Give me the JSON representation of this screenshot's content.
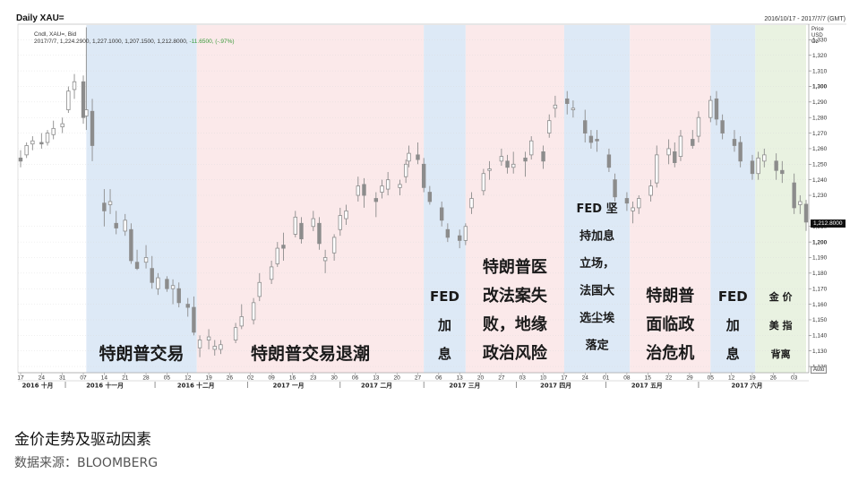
{
  "chart_header": {
    "title": "Daily XAU=",
    "date_range": "2016/10/17 - 2017/7/7 (GMT)",
    "ohlc_line1": "Cndl, XAU=, Bid",
    "ohlc_line2": "2017/7/7, 1,224.2900, 1,227.1000, 1,207.1500, 1,212.8000,",
    "ohlc_change": "-11.6500, (-.97%)"
  },
  "caption": "金价走势及驱动因素",
  "source": "数据来源：BLOOMBERG",
  "colors": {
    "blue_band": "#dde9f6",
    "pink_band": "#fbe9ea",
    "green_band": "#e9f2e1",
    "candle": "#8c8c8c",
    "label_text": "#1a1a1a"
  },
  "chart_data": {
    "type": "candlestick",
    "y_axis": {
      "header": [
        "Price",
        "USD",
        "Oz"
      ],
      "range": [
        1116,
        1340
      ],
      "ticks": [
        {
          "v": 1120,
          "label": "1,120",
          "bold": false
        },
        {
          "v": 1130,
          "label": "1,130",
          "bold": false
        },
        {
          "v": 1140,
          "label": "1,140",
          "bold": false
        },
        {
          "v": 1150,
          "label": "1,150",
          "bold": false
        },
        {
          "v": 1160,
          "label": "1,160",
          "bold": false
        },
        {
          "v": 1170,
          "label": "1,170",
          "bold": false
        },
        {
          "v": 1180,
          "label": "1,180",
          "bold": false
        },
        {
          "v": 1190,
          "label": "1,190",
          "bold": false
        },
        {
          "v": 1200,
          "label": "1,200",
          "bold": true
        },
        {
          "v": 1210,
          "label": "1,210",
          "bold": false
        },
        {
          "v": 1230,
          "label": "1,230",
          "bold": false
        },
        {
          "v": 1240,
          "label": "1,240",
          "bold": false
        },
        {
          "v": 1250,
          "label": "1,250",
          "bold": false
        },
        {
          "v": 1260,
          "label": "1,260",
          "bold": false
        },
        {
          "v": 1270,
          "label": "1,270",
          "bold": false
        },
        {
          "v": 1280,
          "label": "1,280",
          "bold": false
        },
        {
          "v": 1290,
          "label": "1,290",
          "bold": false
        },
        {
          "v": 1300,
          "label": "1,300",
          "bold": true
        },
        {
          "v": 1310,
          "label": "1,310",
          "bold": false
        },
        {
          "v": 1320,
          "label": "1,320",
          "bold": false
        },
        {
          "v": 1330,
          "label": "1,330",
          "bold": false
        }
      ],
      "last_price": "1,212.8000",
      "auto_label": "Auto"
    },
    "x_axis": {
      "day_ticks": [
        "17",
        "24",
        "31",
        "07",
        "14",
        "21",
        "28",
        "05",
        "12",
        "19",
        "26",
        "02",
        "09",
        "16",
        "23",
        "30",
        "06",
        "13",
        "20",
        "27",
        "06",
        "13",
        "20",
        "27",
        "03",
        "10",
        "17",
        "24",
        "01",
        "08",
        "15",
        "22",
        "29",
        "05",
        "12",
        "19",
        "26",
        "03"
      ],
      "month_labels": [
        "2016 十月",
        "2016 十一月",
        "2016 十二月",
        "2017 一月",
        "2017 二月",
        "2017 三月",
        "2017 四月",
        "2017 五月",
        "2017 六月"
      ]
    },
    "regimes": [
      {
        "id": "trump-trade",
        "color": "blue",
        "from": "2016-11-08",
        "to": "2016-12-15",
        "label_lines": [
          "特朗普交易"
        ]
      },
      {
        "id": "trump-trade-fade",
        "color": "pink",
        "from": "2016-12-15",
        "to": "2017-03-01",
        "label_lines": [
          "特朗普交易退潮"
        ]
      },
      {
        "id": "fed-hike-mar",
        "color": "blue",
        "from": "2017-03-01",
        "to": "2017-03-15",
        "label_lines": [
          "FED",
          "加",
          "息"
        ]
      },
      {
        "id": "healthcare-geopolitics",
        "color": "pink",
        "from": "2017-03-15",
        "to": "2017-04-17",
        "label_lines": [
          "特朗普医",
          "改法案失",
          "败，地缘",
          "政治风险"
        ]
      },
      {
        "id": "fed-firm-france",
        "color": "blue",
        "from": "2017-04-17",
        "to": "2017-05-09",
        "label_lines": [
          "FED 坚",
          "持加息",
          "立场，",
          "法国大",
          "选尘埃",
          "落定"
        ]
      },
      {
        "id": "political-crisis",
        "color": "pink",
        "from": "2017-05-09",
        "to": "2017-06-05",
        "label_lines": [
          "特朗普",
          "面临政",
          "治危机"
        ]
      },
      {
        "id": "fed-hike-jun",
        "color": "blue",
        "from": "2017-06-05",
        "to": "2017-06-20",
        "label_lines": [
          "FED",
          "加",
          "息"
        ]
      },
      {
        "id": "gold-dollar-divergence",
        "color": "green",
        "from": "2017-06-20",
        "to": "2017-07-07",
        "label_lines": [
          "金 价",
          "美 指",
          "背离"
        ]
      }
    ],
    "candles": [
      {
        "date": "2016-10-17",
        "o": 1254,
        "h": 1259,
        "l": 1248,
        "c": 1252
      },
      {
        "date": "2016-10-19",
        "o": 1256,
        "h": 1264,
        "l": 1254,
        "c": 1262
      },
      {
        "date": "2016-10-21",
        "o": 1263,
        "h": 1268,
        "l": 1259,
        "c": 1265
      },
      {
        "date": "2016-10-24",
        "o": 1264,
        "h": 1270,
        "l": 1260,
        "c": 1263
      },
      {
        "date": "2016-10-26",
        "o": 1264,
        "h": 1272,
        "l": 1262,
        "c": 1270
      },
      {
        "date": "2016-10-28",
        "o": 1269,
        "h": 1278,
        "l": 1266,
        "c": 1273
      },
      {
        "date": "2016-10-31",
        "o": 1274,
        "h": 1280,
        "l": 1270,
        "c": 1276
      },
      {
        "date": "2016-11-02",
        "o": 1285,
        "h": 1300,
        "l": 1283,
        "c": 1297
      },
      {
        "date": "2016-11-04",
        "o": 1298,
        "h": 1308,
        "l": 1292,
        "c": 1303
      },
      {
        "date": "2016-11-07",
        "o": 1303,
        "h": 1307,
        "l": 1276,
        "c": 1280
      },
      {
        "date": "2016-11-08",
        "o": 1281,
        "h": 1338,
        "l": 1272,
        "c": 1285
      },
      {
        "date": "2016-11-10",
        "o": 1284,
        "h": 1292,
        "l": 1252,
        "c": 1262
      },
      {
        "date": "2016-11-14",
        "o": 1225,
        "h": 1234,
        "l": 1210,
        "c": 1220
      },
      {
        "date": "2016-11-16",
        "o": 1224,
        "h": 1234,
        "l": 1218,
        "c": 1226
      },
      {
        "date": "2016-11-18",
        "o": 1212,
        "h": 1220,
        "l": 1205,
        "c": 1209
      },
      {
        "date": "2016-11-21",
        "o": 1207,
        "h": 1218,
        "l": 1204,
        "c": 1214
      },
      {
        "date": "2016-11-23",
        "o": 1208,
        "h": 1212,
        "l": 1186,
        "c": 1188
      },
      {
        "date": "2016-11-25",
        "o": 1187,
        "h": 1195,
        "l": 1182,
        "c": 1183
      },
      {
        "date": "2016-11-28",
        "o": 1187,
        "h": 1198,
        "l": 1183,
        "c": 1190
      },
      {
        "date": "2016-11-30",
        "o": 1183,
        "h": 1191,
        "l": 1170,
        "c": 1174
      },
      {
        "date": "2016-12-02",
        "o": 1170,
        "h": 1180,
        "l": 1166,
        "c": 1177
      },
      {
        "date": "2016-12-05",
        "o": 1176,
        "h": 1178,
        "l": 1168,
        "c": 1170
      },
      {
        "date": "2016-12-07",
        "o": 1170,
        "h": 1176,
        "l": 1160,
        "c": 1172
      },
      {
        "date": "2016-12-09",
        "o": 1170,
        "h": 1174,
        "l": 1158,
        "c": 1161
      },
      {
        "date": "2016-12-12",
        "o": 1160,
        "h": 1164,
        "l": 1152,
        "c": 1158
      },
      {
        "date": "2016-12-14",
        "o": 1158,
        "h": 1165,
        "l": 1140,
        "c": 1142
      },
      {
        "date": "2016-12-16",
        "o": 1132,
        "h": 1140,
        "l": 1126,
        "c": 1137
      },
      {
        "date": "2016-12-19",
        "o": 1137,
        "h": 1144,
        "l": 1131,
        "c": 1139
      },
      {
        "date": "2016-12-21",
        "o": 1131,
        "h": 1137,
        "l": 1127,
        "c": 1133
      },
      {
        "date": "2016-12-23",
        "o": 1131,
        "h": 1137,
        "l": 1128,
        "c": 1134
      },
      {
        "date": "2016-12-28",
        "o": 1137,
        "h": 1148,
        "l": 1135,
        "c": 1145
      },
      {
        "date": "2016-12-30",
        "o": 1146,
        "h": 1160,
        "l": 1144,
        "c": 1152
      },
      {
        "date": "2017-01-03",
        "o": 1150,
        "h": 1164,
        "l": 1147,
        "c": 1161
      },
      {
        "date": "2017-01-05",
        "o": 1165,
        "h": 1180,
        "l": 1162,
        "c": 1174
      },
      {
        "date": "2017-01-09",
        "o": 1176,
        "h": 1188,
        "l": 1173,
        "c": 1184
      },
      {
        "date": "2017-01-11",
        "o": 1186,
        "h": 1200,
        "l": 1184,
        "c": 1196
      },
      {
        "date": "2017-01-13",
        "o": 1198,
        "h": 1206,
        "l": 1188,
        "c": 1196
      },
      {
        "date": "2017-01-17",
        "o": 1205,
        "h": 1220,
        "l": 1203,
        "c": 1216
      },
      {
        "date": "2017-01-19",
        "o": 1212,
        "h": 1216,
        "l": 1199,
        "c": 1202
      },
      {
        "date": "2017-01-23",
        "o": 1210,
        "h": 1220,
        "l": 1207,
        "c": 1215
      },
      {
        "date": "2017-01-25",
        "o": 1212,
        "h": 1216,
        "l": 1195,
        "c": 1199
      },
      {
        "date": "2017-01-27",
        "o": 1188,
        "h": 1195,
        "l": 1180,
        "c": 1190
      },
      {
        "date": "2017-01-30",
        "o": 1193,
        "h": 1205,
        "l": 1188,
        "c": 1203
      },
      {
        "date": "2017-02-01",
        "o": 1208,
        "h": 1222,
        "l": 1204,
        "c": 1217
      },
      {
        "date": "2017-02-03",
        "o": 1215,
        "h": 1224,
        "l": 1211,
        "c": 1220
      },
      {
        "date": "2017-02-07",
        "o": 1230,
        "h": 1242,
        "l": 1226,
        "c": 1236
      },
      {
        "date": "2017-02-09",
        "o": 1237,
        "h": 1241,
        "l": 1222,
        "c": 1230
      },
      {
        "date": "2017-02-13",
        "o": 1228,
        "h": 1232,
        "l": 1216,
        "c": 1226
      },
      {
        "date": "2017-02-15",
        "o": 1232,
        "h": 1240,
        "l": 1228,
        "c": 1236
      },
      {
        "date": "2017-02-17",
        "o": 1234,
        "h": 1245,
        "l": 1230,
        "c": 1240
      },
      {
        "date": "2017-02-21",
        "o": 1235,
        "h": 1240,
        "l": 1230,
        "c": 1237
      },
      {
        "date": "2017-02-23",
        "o": 1242,
        "h": 1253,
        "l": 1238,
        "c": 1250
      },
      {
        "date": "2017-02-24",
        "o": 1252,
        "h": 1262,
        "l": 1248,
        "c": 1257
      },
      {
        "date": "2017-02-27",
        "o": 1256,
        "h": 1264,
        "l": 1250,
        "c": 1253
      },
      {
        "date": "2017-03-01",
        "o": 1250,
        "h": 1254,
        "l": 1232,
        "c": 1235
      },
      {
        "date": "2017-03-03",
        "o": 1232,
        "h": 1236,
        "l": 1224,
        "c": 1226
      },
      {
        "date": "2017-03-07",
        "o": 1222,
        "h": 1226,
        "l": 1210,
        "c": 1214
      },
      {
        "date": "2017-03-09",
        "o": 1208,
        "h": 1212,
        "l": 1200,
        "c": 1203
      },
      {
        "date": "2017-03-13",
        "o": 1204,
        "h": 1208,
        "l": 1196,
        "c": 1201
      },
      {
        "date": "2017-03-15",
        "o": 1201,
        "h": 1212,
        "l": 1198,
        "c": 1210
      },
      {
        "date": "2017-03-17",
        "o": 1222,
        "h": 1232,
        "l": 1218,
        "c": 1228
      },
      {
        "date": "2017-03-21",
        "o": 1233,
        "h": 1247,
        "l": 1230,
        "c": 1244
      },
      {
        "date": "2017-03-23",
        "o": 1246,
        "h": 1252,
        "l": 1240,
        "c": 1247
      },
      {
        "date": "2017-03-27",
        "o": 1252,
        "h": 1260,
        "l": 1249,
        "c": 1255
      },
      {
        "date": "2017-03-29",
        "o": 1252,
        "h": 1256,
        "l": 1244,
        "c": 1248
      },
      {
        "date": "2017-03-31",
        "o": 1248,
        "h": 1258,
        "l": 1244,
        "c": 1250
      },
      {
        "date": "2017-04-04",
        "o": 1254,
        "h": 1258,
        "l": 1242,
        "c": 1252
      },
      {
        "date": "2017-04-06",
        "o": 1256,
        "h": 1268,
        "l": 1253,
        "c": 1265
      },
      {
        "date": "2017-04-10",
        "o": 1258,
        "h": 1262,
        "l": 1247,
        "c": 1252
      },
      {
        "date": "2017-04-12",
        "o": 1270,
        "h": 1282,
        "l": 1267,
        "c": 1278
      },
      {
        "date": "2017-04-14",
        "o": 1286,
        "h": 1294,
        "l": 1280,
        "c": 1288
      },
      {
        "date": "2017-04-18",
        "o": 1292,
        "h": 1297,
        "l": 1282,
        "c": 1289
      },
      {
        "date": "2017-04-20",
        "o": 1285,
        "h": 1291,
        "l": 1280,
        "c": 1286
      },
      {
        "date": "2017-04-24",
        "o": 1278,
        "h": 1285,
        "l": 1264,
        "c": 1270
      },
      {
        "date": "2017-04-26",
        "o": 1268,
        "h": 1272,
        "l": 1260,
        "c": 1264
      },
      {
        "date": "2017-04-28",
        "o": 1266,
        "h": 1272,
        "l": 1258,
        "c": 1265
      },
      {
        "date": "2017-05-02",
        "o": 1256,
        "h": 1260,
        "l": 1245,
        "c": 1248
      },
      {
        "date": "2017-05-04",
        "o": 1240,
        "h": 1244,
        "l": 1226,
        "c": 1229
      },
      {
        "date": "2017-05-08",
        "o": 1228,
        "h": 1232,
        "l": 1220,
        "c": 1225
      },
      {
        "date": "2017-05-10",
        "o": 1220,
        "h": 1226,
        "l": 1212,
        "c": 1222
      },
      {
        "date": "2017-05-12",
        "o": 1222,
        "h": 1230,
        "l": 1218,
        "c": 1228
      },
      {
        "date": "2017-05-16",
        "o": 1230,
        "h": 1240,
        "l": 1226,
        "c": 1236
      },
      {
        "date": "2017-05-18",
        "o": 1238,
        "h": 1262,
        "l": 1235,
        "c": 1256
      },
      {
        "date": "2017-05-22",
        "o": 1256,
        "h": 1266,
        "l": 1250,
        "c": 1260
      },
      {
        "date": "2017-05-24",
        "o": 1258,
        "h": 1264,
        "l": 1248,
        "c": 1251
      },
      {
        "date": "2017-05-26",
        "o": 1255,
        "h": 1272,
        "l": 1252,
        "c": 1268
      },
      {
        "date": "2017-05-30",
        "o": 1266,
        "h": 1272,
        "l": 1260,
        "c": 1262
      },
      {
        "date": "2017-06-01",
        "o": 1268,
        "h": 1284,
        "l": 1264,
        "c": 1280
      },
      {
        "date": "2017-06-05",
        "o": 1280,
        "h": 1294,
        "l": 1277,
        "c": 1291
      },
      {
        "date": "2017-06-07",
        "o": 1292,
        "h": 1297,
        "l": 1275,
        "c": 1279
      },
      {
        "date": "2017-06-09",
        "o": 1278,
        "h": 1282,
        "l": 1266,
        "c": 1270
      },
      {
        "date": "2017-06-13",
        "o": 1266,
        "h": 1272,
        "l": 1258,
        "c": 1262
      },
      {
        "date": "2017-06-15",
        "o": 1264,
        "h": 1268,
        "l": 1248,
        "c": 1252
      },
      {
        "date": "2017-06-19",
        "o": 1252,
        "h": 1256,
        "l": 1240,
        "c": 1244
      },
      {
        "date": "2017-06-21",
        "o": 1244,
        "h": 1258,
        "l": 1240,
        "c": 1254
      },
      {
        "date": "2017-06-23",
        "o": 1252,
        "h": 1260,
        "l": 1248,
        "c": 1256
      },
      {
        "date": "2017-06-27",
        "o": 1252,
        "h": 1257,
        "l": 1240,
        "c": 1246
      },
      {
        "date": "2017-06-29",
        "o": 1246,
        "h": 1252,
        "l": 1238,
        "c": 1244
      },
      {
        "date": "2017-07-03",
        "o": 1238,
        "h": 1244,
        "l": 1218,
        "c": 1222
      },
      {
        "date": "2017-07-05",
        "o": 1224,
        "h": 1230,
        "l": 1218,
        "c": 1226
      },
      {
        "date": "2017-07-07",
        "o": 1224.29,
        "h": 1227.1,
        "l": 1207.15,
        "c": 1212.8
      }
    ]
  }
}
